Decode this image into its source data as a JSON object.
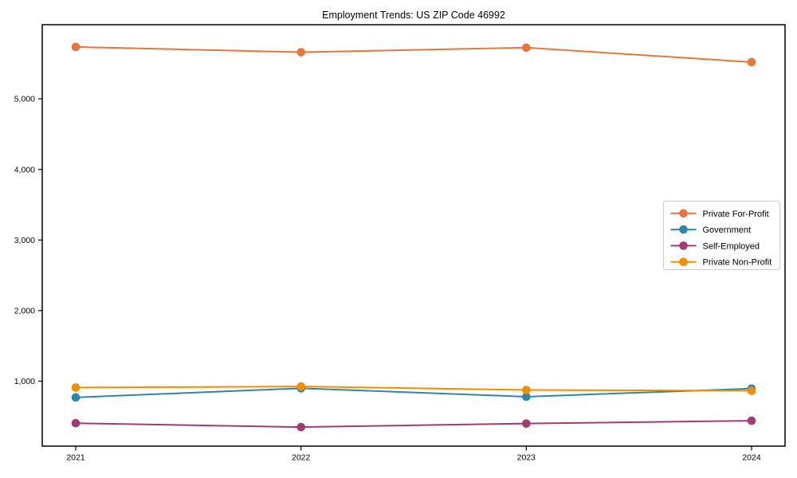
{
  "chart_data": {
    "type": "line",
    "title": "Employment Trends: US ZIP Code 46992",
    "categories": [
      "2021",
      "2022",
      "2023",
      "2024"
    ],
    "series": [
      {
        "name": "Private For-Profit",
        "color": "#E8763B",
        "values": [
          5735,
          5660,
          5725,
          5520
        ]
      },
      {
        "name": "Government",
        "color": "#2E86AB",
        "values": [
          770,
          900,
          780,
          895
        ]
      },
      {
        "name": "Self-Employed",
        "color": "#A23B72",
        "values": [
          405,
          350,
          400,
          440
        ]
      },
      {
        "name": "Private Non-Profit",
        "color": "#F18F01",
        "values": [
          910,
          925,
          875,
          865
        ]
      }
    ],
    "yticks": [
      {
        "value": 1000,
        "label": "1,000"
      },
      {
        "value": 2000,
        "label": "2,000"
      },
      {
        "value": 3000,
        "label": "3,000"
      },
      {
        "value": 4000,
        "label": "4,000"
      },
      {
        "value": 5000,
        "label": "5,000"
      }
    ],
    "ylim": [
      80,
      6050
    ],
    "grid": false,
    "legend_position": "right-center",
    "axis_color": "#000000",
    "legend_border_color": "#cccccc"
  }
}
